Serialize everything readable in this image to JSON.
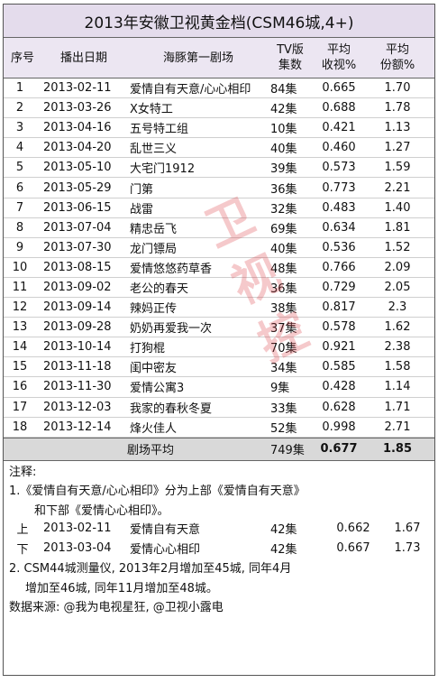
{
  "title": "2013年安徽卫视黄金档(CSM46城,4+)",
  "header": {
    "no": "序号",
    "date": "播出日期",
    "drama": "海豚第一剧场",
    "ep1": "TV版",
    "ep2": "集数",
    "rating1": "平均",
    "rating2": "收视%",
    "share1": "平均",
    "share2": "份额%"
  },
  "rows": [
    {
      "no": "1",
      "date": "2013-02-11",
      "drama": "爱情自有天意/心心相印",
      "eps": "84集",
      "rating": "0.665",
      "share": "1.70"
    },
    {
      "no": "2",
      "date": "2013-03-26",
      "drama": "X女特工",
      "eps": "42集",
      "rating": "0.688",
      "share": "1.78"
    },
    {
      "no": "3",
      "date": "2013-04-16",
      "drama": "五号特工组",
      "eps": "10集",
      "rating": "0.421",
      "share": "1.13"
    },
    {
      "no": "4",
      "date": "2013-04-20",
      "drama": "乱世三义",
      "eps": "40集",
      "rating": "0.460",
      "share": "1.27"
    },
    {
      "no": "5",
      "date": "2013-05-10",
      "drama": "大宅门1912",
      "eps": "39集",
      "rating": "0.573",
      "share": "1.59"
    },
    {
      "no": "6",
      "date": "2013-05-29",
      "drama": "门第",
      "eps": "36集",
      "rating": "0.773",
      "share": "2.21"
    },
    {
      "no": "7",
      "date": "2013-06-15",
      "drama": "战雷",
      "eps": "32集",
      "rating": "0.483",
      "share": "1.40"
    },
    {
      "no": "8",
      "date": "2013-07-04",
      "drama": "精忠岳飞",
      "eps": "69集",
      "rating": "0.634",
      "share": "1.81"
    },
    {
      "no": "9",
      "date": "2013-07-30",
      "drama": "龙门镖局",
      "eps": "40集",
      "rating": "0.536",
      "share": "1.52"
    },
    {
      "no": "10",
      "date": "2013-08-15",
      "drama": "爱情悠悠药草香",
      "eps": "48集",
      "rating": "0.766",
      "share": "2.09"
    },
    {
      "no": "11",
      "date": "2013-09-02",
      "drama": "老公的春天",
      "eps": "36集",
      "rating": "0.729",
      "share": "2.05"
    },
    {
      "no": "12",
      "date": "2013-09-14",
      "drama": "辣妈正传",
      "eps": "38集",
      "rating": "0.817",
      "share": "2.3"
    },
    {
      "no": "13",
      "date": "2013-09-28",
      "drama": "奶奶再爱我一次",
      "eps": "37集",
      "rating": "0.578",
      "share": "1.62"
    },
    {
      "no": "14",
      "date": "2013-10-14",
      "drama": "打狗棍",
      "eps": "70集",
      "rating": "0.921",
      "share": "2.38"
    },
    {
      "no": "15",
      "date": "2013-11-18",
      "drama": "闺中密友",
      "eps": "34集",
      "rating": "0.585",
      "share": "1.58"
    },
    {
      "no": "16",
      "date": "2013-11-30",
      "drama": "爱情公寓3",
      "eps": "9集",
      "rating": "0.428",
      "share": "1.14"
    },
    {
      "no": "17",
      "date": "2013-12-03",
      "drama": "我家的春秋冬夏",
      "eps": "33集",
      "rating": "0.628",
      "share": "1.71"
    },
    {
      "no": "18",
      "date": "2013-12-14",
      "drama": "烽火佳人",
      "eps": "52集",
      "rating": "0.998",
      "share": "2.71"
    }
  ],
  "average": {
    "label": "剧场平均",
    "eps": "749集",
    "rating": "0.677",
    "share": "1.85"
  },
  "notes": {
    "heading": "注释:",
    "note1_line1": "1.《爱情自有天意/心心相印》分为上部《爱情自有天意》",
    "note1_line2": "和下部《爱情心心相印》。",
    "parts": [
      {
        "part": "上",
        "date": "2013-02-11",
        "drama": "爱情自有天意",
        "eps": "42集",
        "rating": "0.662",
        "share": "1.67"
      },
      {
        "part": "下",
        "date": "2013-03-04",
        "drama": "爱情心心相印",
        "eps": "42集",
        "rating": "0.667",
        "share": "1.73"
      }
    ],
    "note2_line1": "2. CSM44城测量仪, 2013年2月增加至45城, 同年4月",
    "note2_line2": "增加至46城, 同年11月增加至48城。",
    "source": "数据来源: @我为电视星狂, @卫视小露电"
  },
  "watermark": [
    "卫",
    "视",
    "控"
  ]
}
